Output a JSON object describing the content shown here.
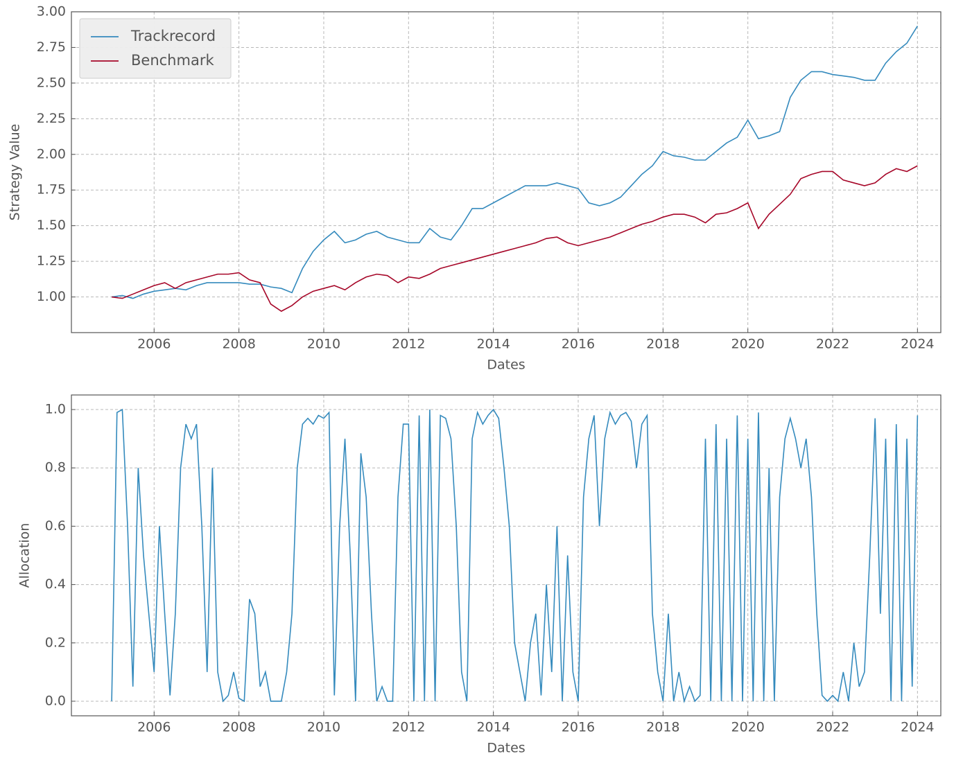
{
  "chart_data": [
    {
      "type": "line",
      "ylabel": "Strategy Value",
      "xlabel": "Dates",
      "legend": "upper left",
      "grid": true,
      "x": [
        2005,
        2005.25,
        2005.5,
        2005.75,
        2006,
        2006.25,
        2006.5,
        2006.75,
        2007,
        2007.25,
        2007.5,
        2007.75,
        2008,
        2008.25,
        2008.5,
        2008.75,
        2009,
        2009.25,
        2009.5,
        2009.75,
        2010,
        2010.25,
        2010.5,
        2010.75,
        2011,
        2011.25,
        2011.5,
        2011.75,
        2012,
        2012.25,
        2012.5,
        2012.75,
        2013,
        2013.25,
        2013.5,
        2013.75,
        2014,
        2014.25,
        2014.5,
        2014.75,
        2015,
        2015.25,
        2015.5,
        2015.75,
        2016,
        2016.25,
        2016.5,
        2016.75,
        2017,
        2017.25,
        2017.5,
        2017.75,
        2018,
        2018.25,
        2018.5,
        2018.75,
        2019,
        2019.25,
        2019.5,
        2019.75,
        2020,
        2020.25,
        2020.5,
        2020.75,
        2021,
        2021.25,
        2021.5,
        2021.75,
        2022,
        2022.25,
        2022.5,
        2022.75,
        2023,
        2023.25,
        2023.5,
        2023.75,
        2024
      ],
      "series": [
        {
          "name": "Trackrecord",
          "color": "#348abd",
          "values": [
            1.0,
            1.01,
            0.99,
            1.02,
            1.04,
            1.05,
            1.06,
            1.05,
            1.08,
            1.1,
            1.1,
            1.1,
            1.1,
            1.09,
            1.09,
            1.07,
            1.06,
            1.03,
            1.2,
            1.32,
            1.4,
            1.46,
            1.38,
            1.4,
            1.44,
            1.46,
            1.42,
            1.4,
            1.38,
            1.38,
            1.48,
            1.42,
            1.4,
            1.5,
            1.62,
            1.62,
            1.66,
            1.7,
            1.74,
            1.78,
            1.78,
            1.78,
            1.8,
            1.78,
            1.76,
            1.66,
            1.64,
            1.66,
            1.7,
            1.78,
            1.86,
            1.92,
            2.02,
            1.99,
            1.98,
            1.96,
            1.96,
            2.02,
            2.08,
            2.12,
            2.24,
            2.11,
            2.13,
            2.16,
            2.4,
            2.52,
            2.58,
            2.58,
            2.56,
            2.55,
            2.54,
            2.52,
            2.52,
            2.64,
            2.72,
            2.78,
            2.9
          ]
        },
        {
          "name": "Benchmark",
          "color": "#a60628",
          "values": [
            1.0,
            0.99,
            1.02,
            1.05,
            1.08,
            1.1,
            1.06,
            1.1,
            1.12,
            1.14,
            1.16,
            1.16,
            1.17,
            1.12,
            1.1,
            0.95,
            0.9,
            0.94,
            1.0,
            1.04,
            1.06,
            1.08,
            1.05,
            1.1,
            1.14,
            1.16,
            1.15,
            1.1,
            1.14,
            1.13,
            1.16,
            1.2,
            1.22,
            1.24,
            1.26,
            1.28,
            1.3,
            1.32,
            1.34,
            1.36,
            1.38,
            1.41,
            1.42,
            1.38,
            1.36,
            1.38,
            1.4,
            1.42,
            1.45,
            1.48,
            1.51,
            1.53,
            1.56,
            1.58,
            1.58,
            1.56,
            1.52,
            1.58,
            1.59,
            1.62,
            1.66,
            1.48,
            1.58,
            1.65,
            1.72,
            1.83,
            1.86,
            1.88,
            1.88,
            1.82,
            1.8,
            1.78,
            1.8,
            1.86,
            1.9,
            1.88,
            1.92
          ]
        }
      ],
      "xlim": [
        2004.05,
        2024.55
      ],
      "ylim": [
        0.75,
        3.0
      ],
      "xticks": [
        2006,
        2008,
        2010,
        2012,
        2014,
        2016,
        2018,
        2020,
        2022,
        2024
      ],
      "yticks": [
        {
          "value": 1,
          "label": "1.00"
        },
        1.25,
        {
          "value": 1.5,
          "label": "1.50"
        },
        1.75,
        {
          "value": 2,
          "label": "2.00"
        },
        2.25,
        {
          "value": 2.5,
          "label": "2.50"
        },
        2.75,
        {
          "value": 3,
          "label": "3.00"
        }
      ]
    },
    {
      "type": "line",
      "ylabel": "Allocation",
      "xlabel": "Dates",
      "grid": true,
      "x": [
        2005,
        2005.125,
        2005.25,
        2005.375,
        2005.5,
        2005.625,
        2005.75,
        2005.875,
        2006,
        2006.125,
        2006.25,
        2006.375,
        2006.5,
        2006.625,
        2006.75,
        2006.875,
        2007,
        2007.125,
        2007.25,
        2007.375,
        2007.5,
        2007.625,
        2007.75,
        2007.875,
        2008,
        2008.125,
        2008.25,
        2008.375,
        2008.5,
        2008.625,
        2008.75,
        2008.875,
        2009,
        2009.125,
        2009.25,
        2009.375,
        2009.5,
        2009.625,
        2009.75,
        2009.875,
        2010,
        2010.125,
        2010.25,
        2010.375,
        2010.5,
        2010.625,
        2010.75,
        2010.875,
        2011,
        2011.125,
        2011.25,
        2011.375,
        2011.5,
        2011.625,
        2011.75,
        2011.875,
        2012,
        2012.125,
        2012.25,
        2012.375,
        2012.5,
        2012.625,
        2012.75,
        2012.875,
        2013,
        2013.125,
        2013.25,
        2013.375,
        2013.5,
        2013.625,
        2013.75,
        2013.875,
        2014,
        2014.125,
        2014.25,
        2014.375,
        2014.5,
        2014.625,
        2014.75,
        2014.875,
        2015,
        2015.125,
        2015.25,
        2015.375,
        2015.5,
        2015.625,
        2015.75,
        2015.875,
        2016,
        2016.125,
        2016.25,
        2016.375,
        2016.5,
        2016.625,
        2016.75,
        2016.875,
        2017,
        2017.125,
        2017.25,
        2017.375,
        2017.5,
        2017.625,
        2017.75,
        2017.875,
        2018,
        2018.125,
        2018.25,
        2018.375,
        2018.5,
        2018.625,
        2018.75,
        2018.875,
        2019,
        2019.125,
        2019.25,
        2019.375,
        2019.5,
        2019.625,
        2019.75,
        2019.875,
        2020,
        2020.125,
        2020.25,
        2020.375,
        2020.5,
        2020.625,
        2020.75,
        2020.875,
        2021,
        2021.125,
        2021.25,
        2021.375,
        2021.5,
        2021.625,
        2021.75,
        2021.875,
        2022,
        2022.125,
        2022.25,
        2022.375,
        2022.5,
        2022.625,
        2022.75,
        2022.875,
        2023,
        2023.125,
        2023.25,
        2023.375,
        2023.5,
        2023.625,
        2023.75,
        2023.875,
        2024
      ],
      "series": [
        {
          "color": "#348abd",
          "values": [
            0.0,
            0.99,
            1.0,
            0.6,
            0.05,
            0.8,
            0.5,
            0.3,
            0.1,
            0.6,
            0.3,
            0.02,
            0.3,
            0.8,
            0.95,
            0.9,
            0.95,
            0.6,
            0.1,
            0.8,
            0.1,
            0.0,
            0.02,
            0.1,
            0.01,
            0.0,
            0.35,
            0.3,
            0.05,
            0.1,
            0.0,
            0.0,
            0.0,
            0.1,
            0.3,
            0.8,
            0.95,
            0.97,
            0.95,
            0.98,
            0.97,
            0.99,
            0.02,
            0.6,
            0.9,
            0.5,
            0.0,
            0.85,
            0.7,
            0.3,
            0.0,
            0.05,
            0.0,
            0.0,
            0.7,
            0.95,
            0.95,
            0.0,
            0.98,
            0.0,
            1.0,
            0.0,
            0.98,
            0.97,
            0.9,
            0.6,
            0.1,
            0.0,
            0.9,
            0.99,
            0.95,
            0.98,
            1.0,
            0.97,
            0.8,
            0.6,
            0.2,
            0.1,
            0.0,
            0.2,
            0.3,
            0.02,
            0.4,
            0.1,
            0.6,
            0.0,
            0.5,
            0.1,
            0.0,
            0.7,
            0.9,
            0.98,
            0.6,
            0.9,
            0.99,
            0.95,
            0.98,
            0.99,
            0.96,
            0.8,
            0.95,
            0.98,
            0.3,
            0.1,
            0.0,
            0.3,
            0.0,
            0.1,
            0.0,
            0.05,
            0.0,
            0.02,
            0.9,
            0.0,
            0.95,
            0.0,
            0.9,
            0.0,
            0.98,
            0.0,
            0.9,
            0.0,
            0.99,
            0.0,
            0.8,
            0.0,
            0.7,
            0.9,
            0.97,
            0.9,
            0.8,
            0.9,
            0.7,
            0.3,
            0.02,
            0.0,
            0.02,
            0.0,
            0.1,
            0.0,
            0.2,
            0.05,
            0.1,
            0.5,
            0.97,
            0.3,
            0.9,
            0.0,
            0.95,
            0.0,
            0.9,
            0.05,
            0.98
          ]
        }
      ],
      "xlim": [
        2004.05,
        2024.55
      ],
      "ylim": [
        -0.05,
        1.05
      ],
      "xticks": [
        2006,
        2008,
        2010,
        2012,
        2014,
        2016,
        2018,
        2020,
        2022,
        2024
      ],
      "yticks": [
        {
          "value": 0,
          "label": "0.0"
        },
        0.2,
        0.4,
        0.6,
        0.8,
        {
          "value": 1,
          "label": "1.0"
        }
      ]
    }
  ]
}
